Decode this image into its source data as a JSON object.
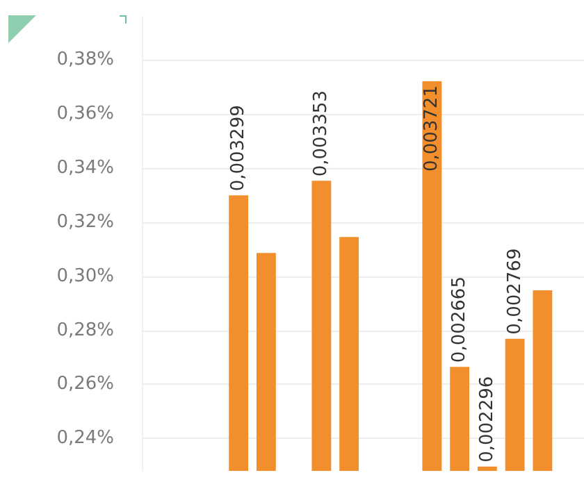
{
  "chart_data": {
    "type": "bar",
    "categories": [
      null,
      null,
      null,
      null,
      null,
      null,
      null,
      null,
      null,
      null,
      null,
      null,
      null,
      null,
      null,
      null
    ],
    "values": [
      null,
      null,
      null,
      0.003299,
      0.003086,
      null,
      0.003353,
      0.003145,
      null,
      null,
      0.003721,
      0.002665,
      0.002296,
      0.002769,
      0.002948,
      null
    ],
    "value_labels": [
      null,
      null,
      null,
      "0,003299",
      null,
      null,
      "0,003353",
      null,
      null,
      null,
      "0,003721",
      "0,002665",
      "0,002296",
      "0,002769",
      null,
      null
    ],
    "color": "#f28e2b",
    "ylim": [
      0.00228,
      0.00396
    ],
    "yticks": [
      {
        "value": 0.0024,
        "label": "0,24%"
      },
      {
        "value": 0.0026,
        "label": "0,26%"
      },
      {
        "value": 0.0028,
        "label": "0,28%"
      },
      {
        "value": 0.003,
        "label": "0,30%"
      },
      {
        "value": 0.0032,
        "label": "0,32%"
      },
      {
        "value": 0.0034,
        "label": "0,34%"
      },
      {
        "value": 0.0036,
        "label": "0,36%"
      },
      {
        "value": 0.0038,
        "label": "0,38%"
      }
    ],
    "grid": "y"
  }
}
